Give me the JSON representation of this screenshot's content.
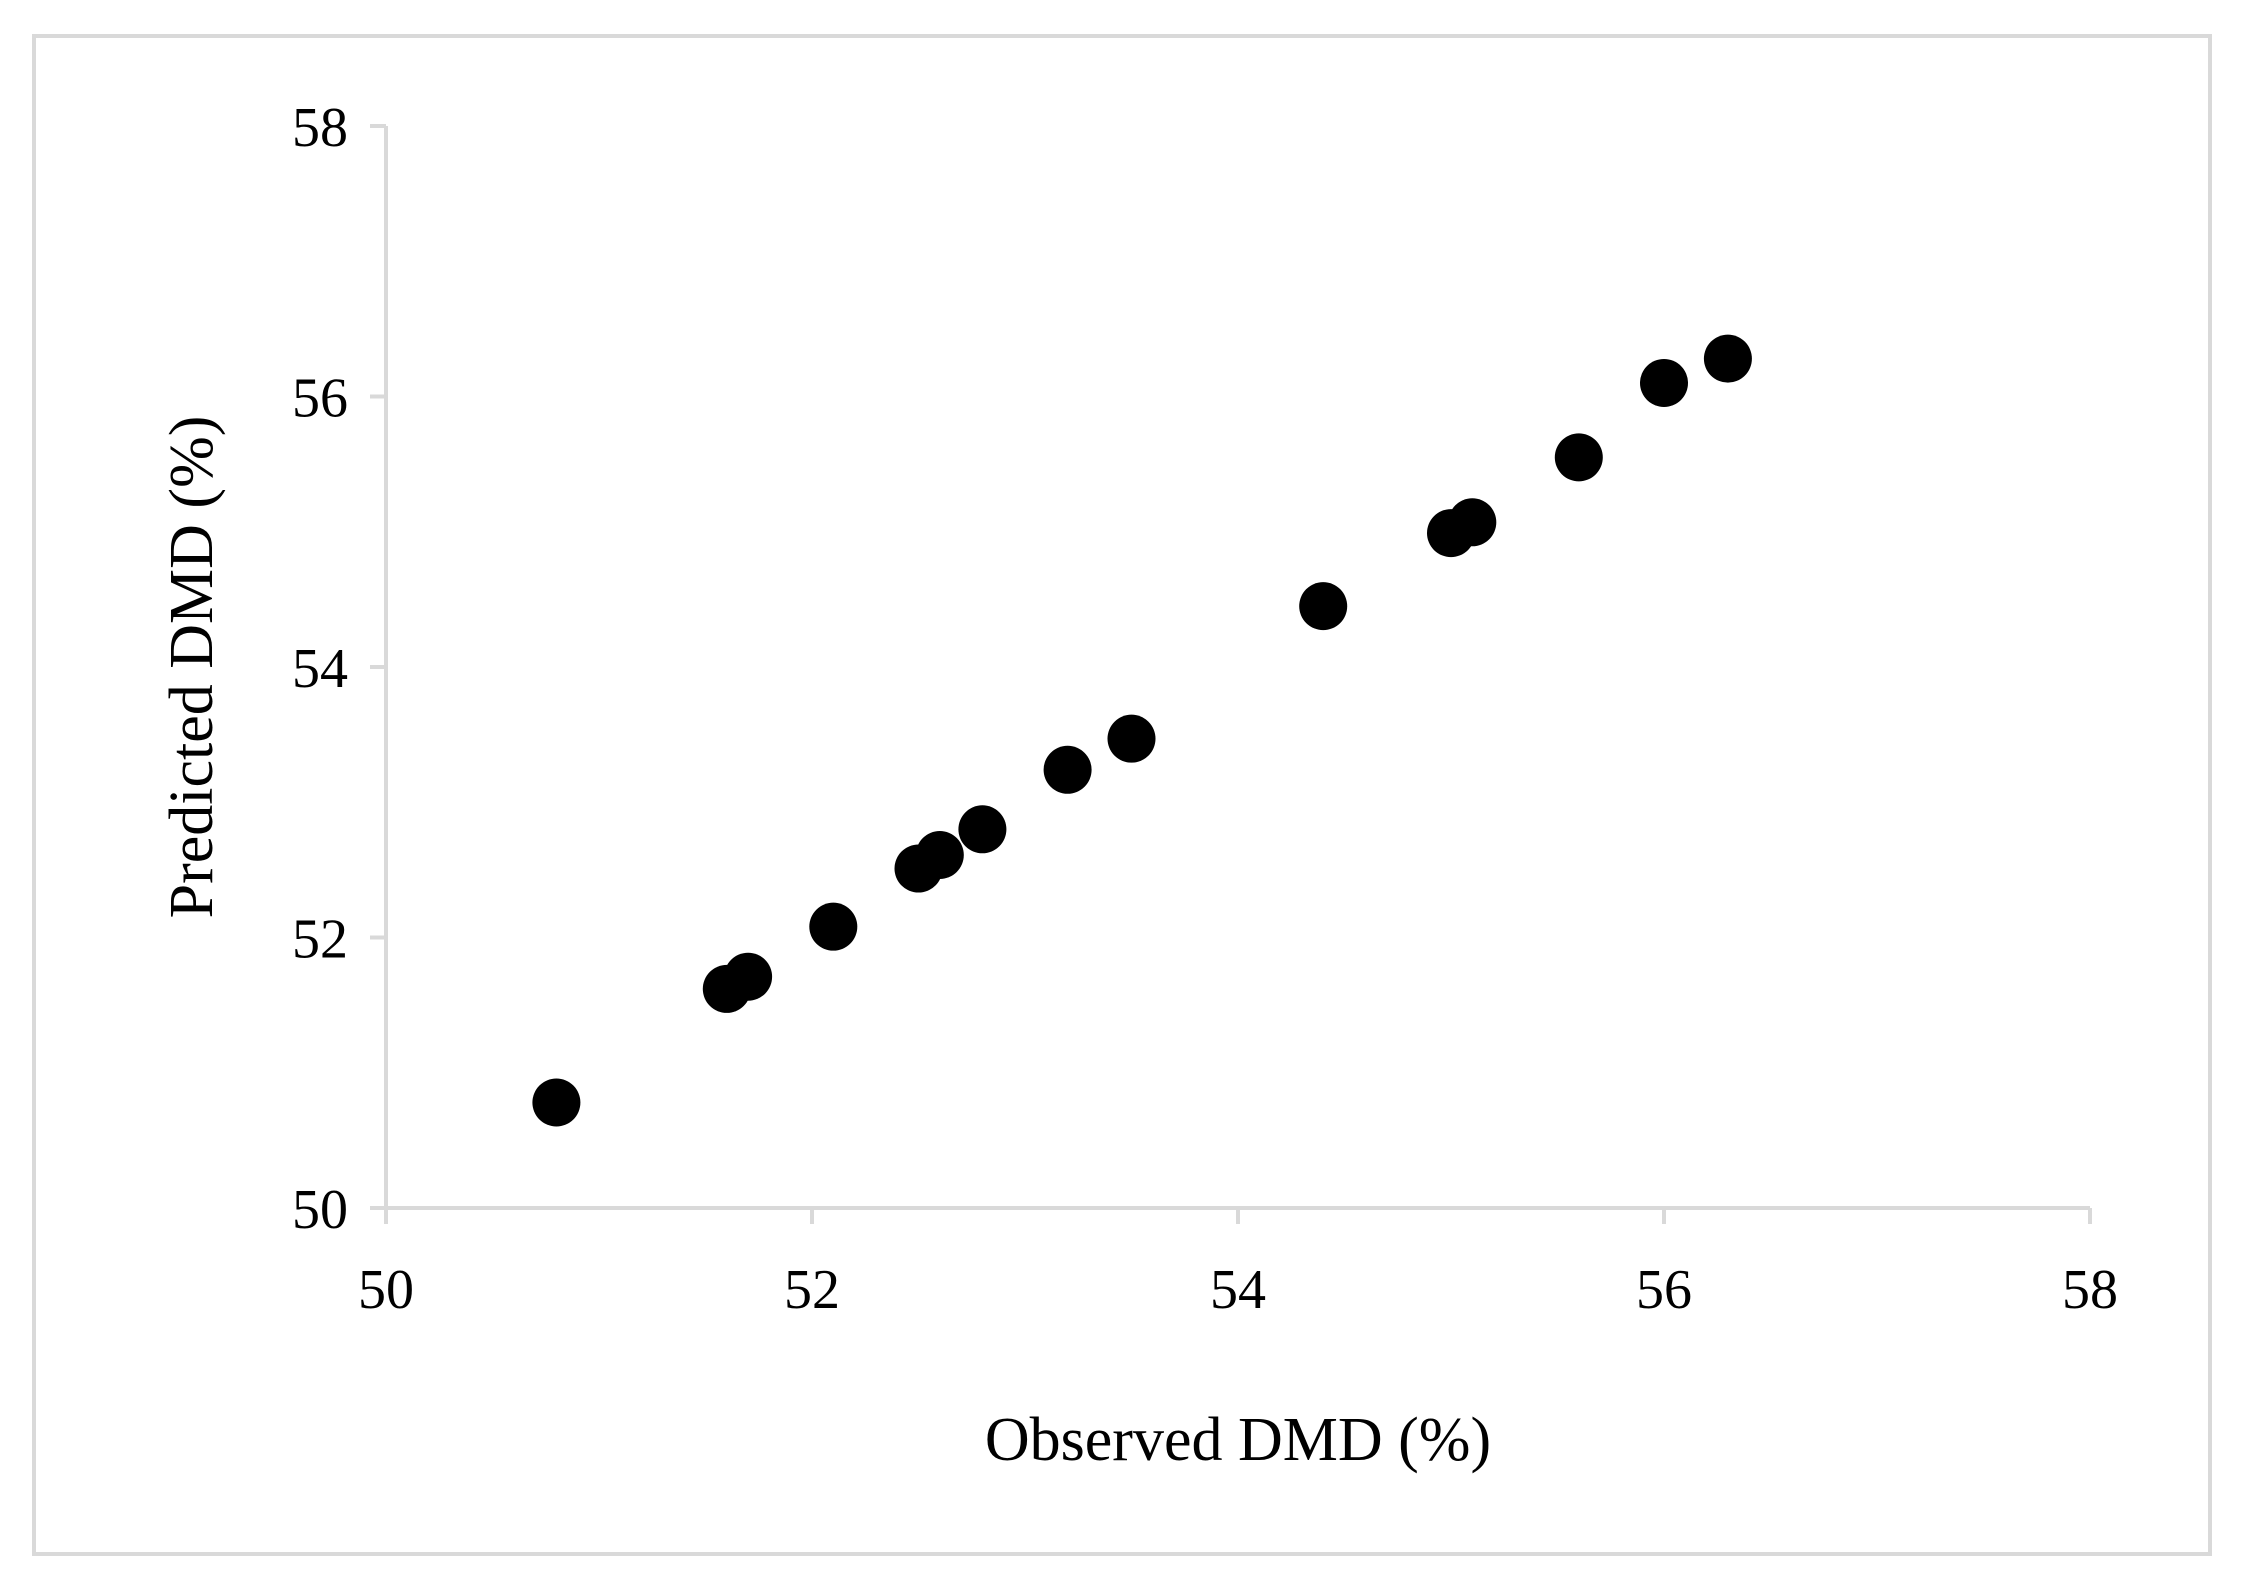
{
  "chart_data": {
    "type": "scatter",
    "xlabel": "Observed DMD (%)",
    "ylabel": "Predicted DMD (%)",
    "xlim": [
      50,
      58
    ],
    "ylim": [
      50,
      58
    ],
    "x_ticks": [
      50,
      52,
      54,
      56,
      58
    ],
    "y_ticks": [
      50,
      52,
      54,
      56,
      58
    ],
    "grid": false,
    "legend": "none",
    "marker_color": "#000000",
    "axis_color": "#d9d9d9",
    "points": [
      {
        "x": 50.8,
        "y": 50.78
      },
      {
        "x": 51.6,
        "y": 51.62
      },
      {
        "x": 51.7,
        "y": 51.71
      },
      {
        "x": 52.1,
        "y": 52.08
      },
      {
        "x": 52.5,
        "y": 52.51
      },
      {
        "x": 52.6,
        "y": 52.61
      },
      {
        "x": 52.8,
        "y": 52.8
      },
      {
        "x": 53.2,
        "y": 53.24
      },
      {
        "x": 53.5,
        "y": 53.47
      },
      {
        "x": 54.4,
        "y": 54.45
      },
      {
        "x": 55.0,
        "y": 54.99
      },
      {
        "x": 55.1,
        "y": 55.07
      },
      {
        "x": 55.6,
        "y": 55.55
      },
      {
        "x": 56.0,
        "y": 56.1
      },
      {
        "x": 56.3,
        "y": 56.28
      }
    ]
  }
}
